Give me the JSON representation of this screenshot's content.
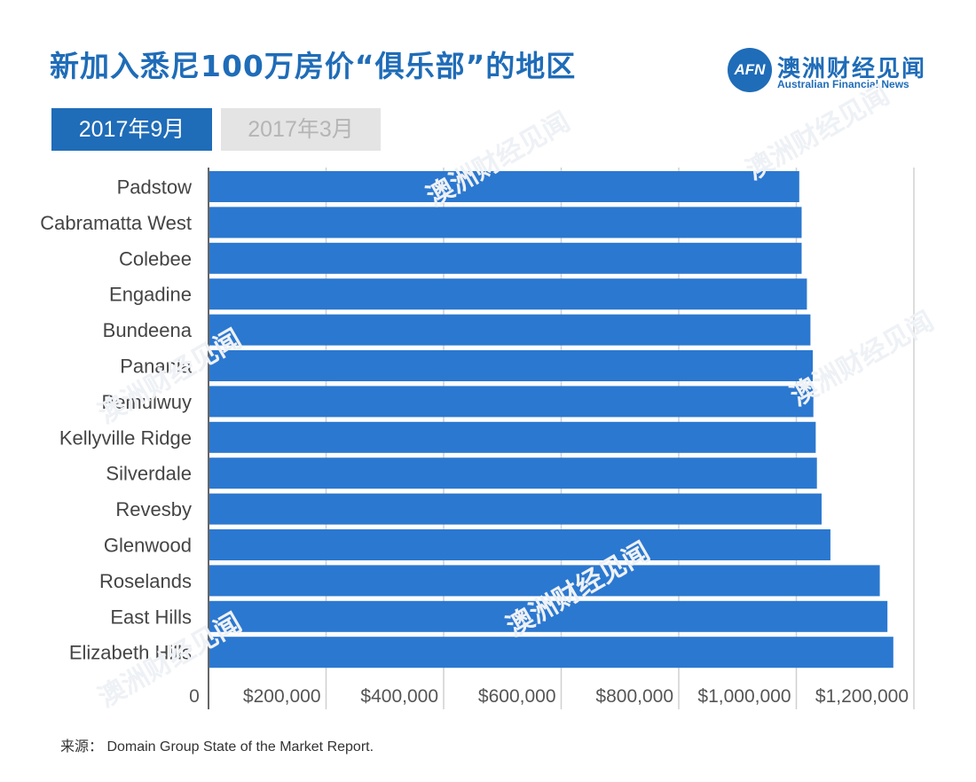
{
  "header": {
    "title": "新加入悉尼100万房价“俱乐部”的地区"
  },
  "brand": {
    "logo_mark": "AFN",
    "name_cn": "澳洲财经见闻",
    "name_en": "Australian Financial News",
    "color": "#1f6cb8"
  },
  "tabs": [
    {
      "label": "2017年9月",
      "active": true
    },
    {
      "label": "2017年3月",
      "active": false
    }
  ],
  "source": "来源： Domain Group State of the Market Report.",
  "chart_data": {
    "type": "bar",
    "orientation": "horizontal",
    "categories": [
      "Padstow",
      "Cabramatta West",
      "Colebee",
      "Engadine",
      "Bundeena",
      "Panania",
      "Pemulwuy",
      "Kellyville Ridge",
      "Silverdale",
      "Revesby",
      "Glenwood",
      "Roselands",
      "East Hills",
      "Elizabeth Hills"
    ],
    "values": [
      1005000,
      1009000,
      1009000,
      1018000,
      1024000,
      1028000,
      1029000,
      1033000,
      1035000,
      1043000,
      1058000,
      1142000,
      1155000,
      1165000
    ],
    "xlim": [
      0,
      1200000
    ],
    "xticks": [
      0,
      200000,
      400000,
      600000,
      800000,
      1000000,
      1200000
    ],
    "xtick_labels": [
      "0",
      "$200,000",
      "$400,000",
      "$600,000",
      "$800,000",
      "$1,000,000",
      "$1,200,000"
    ],
    "grid": true,
    "bar_color": "#2b78d0"
  }
}
